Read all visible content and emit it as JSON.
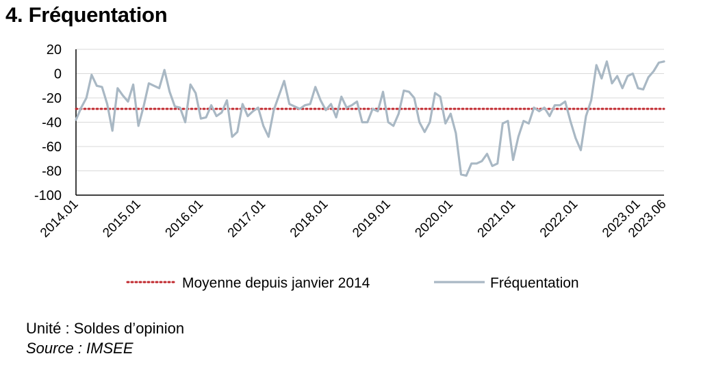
{
  "title": "4. Fréquentation",
  "unit_note": "Unité : Soldes d’opinion",
  "source_note": "Source : IMSEE",
  "colors": {
    "series_line": "#a9b8c4",
    "average_line": "#c0272d",
    "grid": "#d9d9d9",
    "axis": "#000000"
  },
  "chart_data": {
    "type": "line",
    "title": "",
    "xlabel": "",
    "ylabel": "",
    "ylim": [
      -100,
      20
    ],
    "yticks": [
      20,
      0,
      -20,
      -40,
      -60,
      -80,
      -100
    ],
    "grid": true,
    "legend_position": "bottom",
    "x_tick_labels": [
      "2014.01",
      "2015.01",
      "2016.01",
      "2017.01",
      "2018.01",
      "2019.01",
      "2020.01",
      "2021.01",
      "2022.01",
      "2023.01",
      "2023.06"
    ],
    "x_tick_months": [
      0,
      12,
      24,
      36,
      48,
      60,
      72,
      84,
      96,
      108,
      113
    ],
    "series": [
      {
        "name": "Moyenne depuis janvier 2014",
        "style": "dotted",
        "constant_value": -29
      },
      {
        "name": "Fréquentation",
        "style": "solid",
        "x_start": "2014.01",
        "frequency": "monthly",
        "values": [
          -38,
          -28,
          -20,
          -1,
          -10,
          -11,
          -25,
          -47,
          -12,
          -18,
          -23,
          -9,
          -43,
          -27,
          -8,
          -10,
          -12,
          3,
          -15,
          -27,
          -28,
          -40,
          -9,
          -16,
          -37,
          -36,
          -26,
          -35,
          -32,
          -22,
          -52,
          -48,
          -25,
          -35,
          -31,
          -28,
          -43,
          -52,
          -30,
          -18,
          -6,
          -25,
          -27,
          -29,
          -26,
          -25,
          -11,
          -22,
          -30,
          -25,
          -36,
          -19,
          -28,
          -26,
          -23,
          -40,
          -40,
          -29,
          -31,
          -15,
          -40,
          -43,
          -33,
          -14,
          -15,
          -20,
          -40,
          -48,
          -40,
          -16,
          -19,
          -41,
          -33,
          -49,
          -83,
          -84,
          -74,
          -74,
          -72,
          -66,
          -76,
          -74,
          -41,
          -39,
          -71,
          -52,
          -39,
          -41,
          -28,
          -31,
          -28,
          -35,
          -26,
          -26,
          -23,
          -39,
          -53,
          -63,
          -35,
          -22,
          7,
          -4,
          10,
          -8,
          -2,
          -12,
          -2,
          0,
          -12,
          -13,
          -3,
          2,
          9,
          10
        ]
      }
    ]
  }
}
